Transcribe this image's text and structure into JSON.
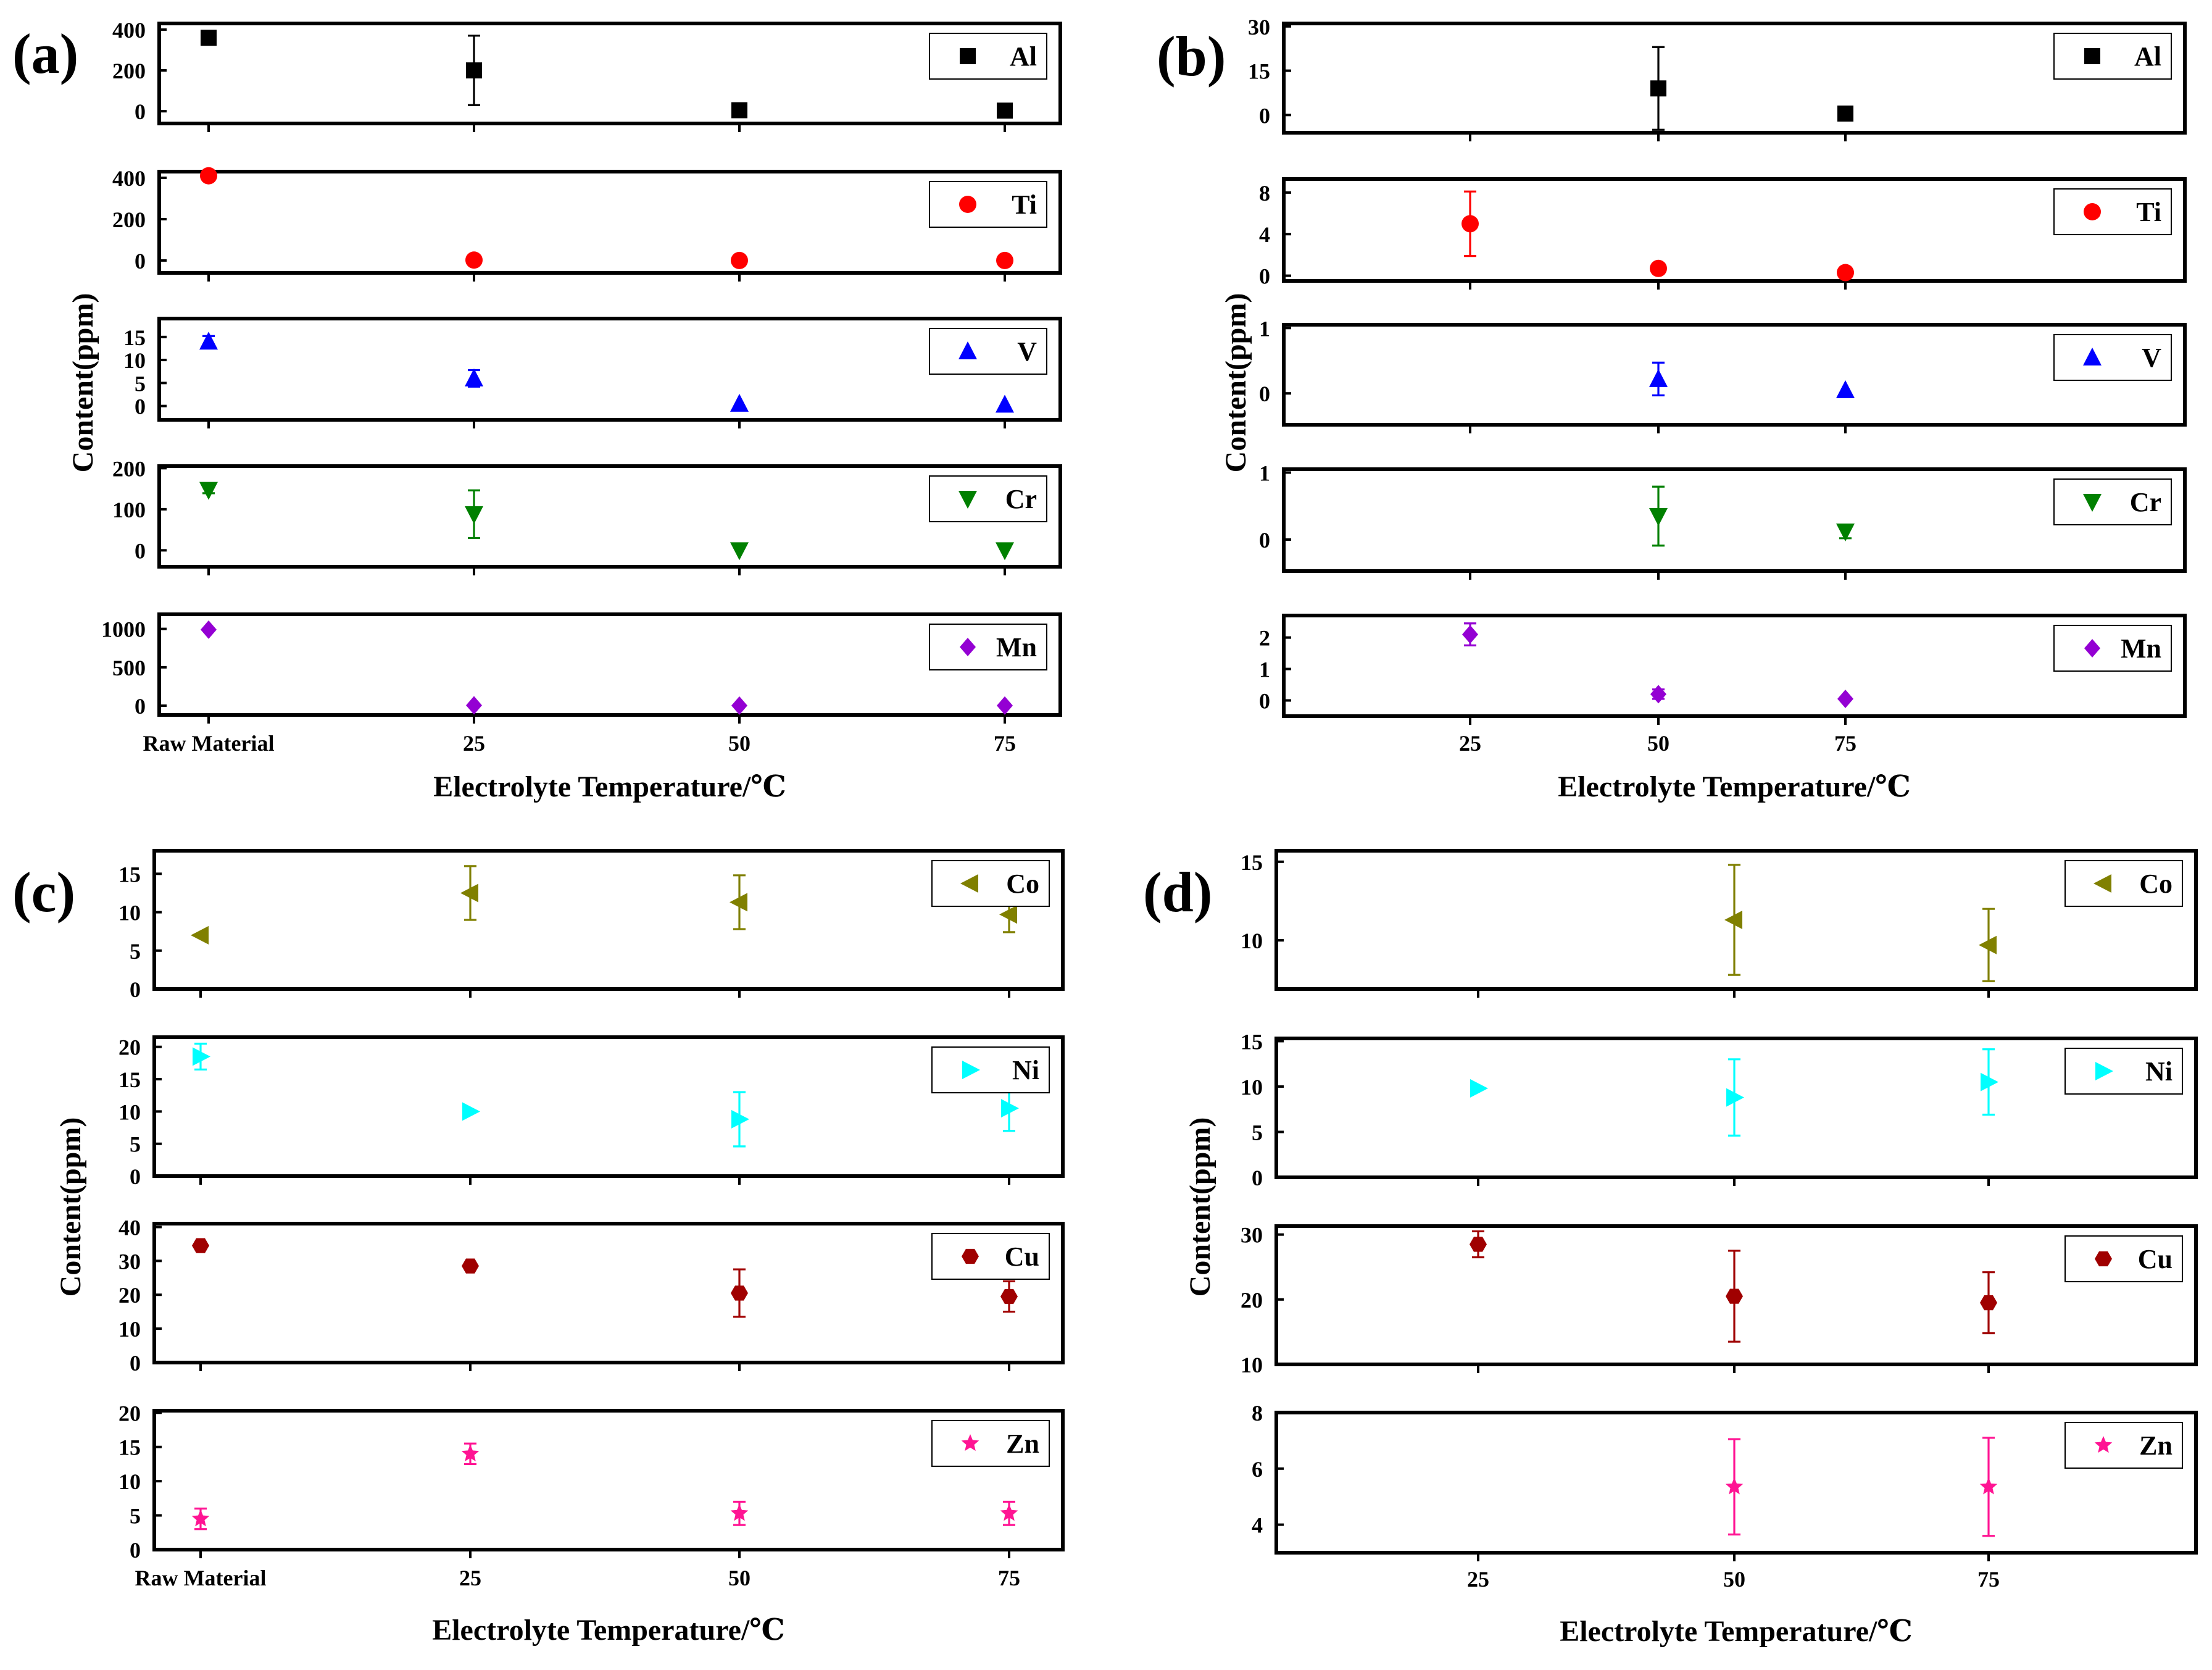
{
  "chart_data": [
    {
      "panel": "(a)",
      "type": "scatter",
      "xlabel": "Electrolyte Temperature/℃",
      "ylabel": "Content(ppm)",
      "categories": [
        "Raw Material",
        "25",
        "50",
        "75"
      ],
      "subplots": [
        {
          "name": "Al",
          "color": "#000000",
          "marker": "square",
          "yticks": [
            "400",
            "200",
            "0"
          ],
          "ylim": [
            -60,
            430
          ],
          "x": [
            0,
            1,
            2,
            3
          ],
          "y": [
            360,
            200,
            5,
            3
          ],
          "err": [
            0,
            170,
            0,
            0
          ]
        },
        {
          "name": "Ti",
          "color": "#ff0000",
          "marker": "circle",
          "yticks": [
            "400",
            "200",
            "0"
          ],
          "ylim": [
            -60,
            430
          ],
          "x": [
            0,
            1,
            2,
            3
          ],
          "y": [
            410,
            2,
            0,
            0
          ],
          "err": [
            0,
            0,
            0,
            0
          ]
        },
        {
          "name": "V",
          "color": "#0000ff",
          "marker": "triangle-up",
          "yticks": [
            "15",
            "10",
            "5",
            "0"
          ],
          "ylim": [
            -3,
            19
          ],
          "x": [
            0,
            1,
            2,
            3
          ],
          "y": [
            14,
            6,
            0.5,
            0.3
          ],
          "err": [
            1.2,
            1.8,
            0,
            0
          ]
        },
        {
          "name": "Cr",
          "color": "#008000",
          "marker": "triangle-down",
          "yticks": [
            "200",
            "100",
            "0"
          ],
          "ylim": [
            -40,
            205
          ],
          "x": [
            0,
            1,
            2,
            3
          ],
          "y": [
            147,
            88,
            0,
            0
          ],
          "err": [
            8,
            58,
            0,
            0
          ]
        },
        {
          "name": "Mn",
          "color": "#9400d3",
          "marker": "diamond",
          "yticks": [
            "1000",
            "500",
            "0"
          ],
          "ylim": [
            -120,
            1190
          ],
          "x": [
            0,
            1,
            2,
            3
          ],
          "y": [
            990,
            5,
            2,
            2
          ],
          "err": [
            0,
            0,
            0,
            0
          ]
        }
      ]
    },
    {
      "panel": "(b)",
      "type": "scatter",
      "xlabel": "Electrolyte Temperature/℃",
      "ylabel": "Content(ppm)",
      "categories": [
        "25",
        "50",
        "75"
      ],
      "subplots": [
        {
          "name": "Al",
          "color": "#000000",
          "marker": "square",
          "yticks": [
            "30",
            "15",
            "0"
          ],
          "ylim": [
            -6,
            31
          ],
          "x": [
            0,
            1,
            2
          ],
          "y": [
            null,
            9,
            0.5
          ],
          "err": [
            0,
            14,
            0
          ]
        },
        {
          "name": "Ti",
          "color": "#ff0000",
          "marker": "circle",
          "yticks": [
            "8",
            "4",
            "0"
          ],
          "ylim": [
            -0.5,
            9.3
          ],
          "x": [
            0,
            1,
            2
          ],
          "y": [
            5,
            0.7,
            0.3
          ],
          "err": [
            3.1,
            0,
            0
          ]
        },
        {
          "name": "V",
          "color": "#0000ff",
          "marker": "triangle-up",
          "yticks": [
            "1",
            "0"
          ],
          "ylim": [
            -0.48,
            1.05
          ],
          "x": [
            0,
            1,
            2
          ],
          "y": [
            null,
            0.22,
            0.05
          ],
          "err": [
            0,
            0.25,
            0
          ]
        },
        {
          "name": "Cr",
          "color": "#008000",
          "marker": "triangle-down",
          "yticks": [
            "1",
            "0"
          ],
          "ylim": [
            -0.47,
            1.05
          ],
          "x": [
            0,
            1,
            2
          ],
          "y": [
            null,
            0.35,
            0.12
          ],
          "err": [
            0,
            0.44,
            0.1
          ]
        },
        {
          "name": "Mn",
          "color": "#9400d3",
          "marker": "diamond",
          "yticks": [
            "2",
            "1",
            "0"
          ],
          "ylim": [
            -0.5,
            2.7
          ],
          "x": [
            0,
            1,
            2
          ],
          "y": [
            2.1,
            0.2,
            0.05
          ],
          "err": [
            0.35,
            0.15,
            0
          ]
        }
      ]
    },
    {
      "panel": "(c)",
      "type": "scatter",
      "xlabel": "Electrolyte Temperature/℃",
      "ylabel": "Content(ppm)",
      "categories": [
        "Raw Material",
        "25",
        "50",
        "75"
      ],
      "subplots": [
        {
          "name": "Co",
          "color": "#808000",
          "marker": "triangle-left",
          "yticks": [
            "15",
            "10",
            "5",
            "0"
          ],
          "ylim": [
            0,
            18
          ],
          "x": [
            0,
            1,
            2,
            3
          ],
          "y": [
            7,
            12.5,
            11.3,
            9.7
          ],
          "err": [
            0,
            3.5,
            3.5,
            2.3
          ]
        },
        {
          "name": "Ni",
          "color": "#00ffff",
          "marker": "triangle-right",
          "yticks": [
            "20",
            "15",
            "10",
            "5",
            "0"
          ],
          "ylim": [
            0,
            21.5
          ],
          "x": [
            0,
            1,
            2,
            3
          ],
          "y": [
            18.5,
            10,
            8.8,
            10.5
          ],
          "err": [
            2,
            0,
            4.2,
            3.5
          ]
        },
        {
          "name": "Cu",
          "color": "#a00000",
          "marker": "hexagon",
          "yticks": [
            "40",
            "30",
            "20",
            "10",
            "0"
          ],
          "ylim": [
            0,
            41
          ],
          "x": [
            0,
            1,
            2,
            3
          ],
          "y": [
            34.5,
            28.5,
            20.5,
            19.5
          ],
          "err": [
            1,
            1,
            7,
            4.5
          ]
        },
        {
          "name": "Zn",
          "color": "#ff1493",
          "marker": "star",
          "yticks": [
            "20",
            "15",
            "10",
            "5",
            "0"
          ],
          "ylim": [
            0,
            20.3
          ],
          "x": [
            0,
            1,
            2,
            3
          ],
          "y": [
            4.5,
            14,
            5.3,
            5.3
          ],
          "err": [
            1.5,
            1.5,
            1.7,
            1.7
          ]
        }
      ]
    },
    {
      "panel": "(d)",
      "type": "scatter",
      "xlabel": "Electrolyte Temperature/℃",
      "ylabel": "Content(ppm)",
      "categories": [
        "25",
        "50",
        "75"
      ],
      "subplots": [
        {
          "name": "Co",
          "color": "#808000",
          "marker": "triangle-left",
          "yticks": [
            "15",
            "10"
          ],
          "ylim": [
            6.9,
            15.7
          ],
          "x": [
            0,
            1,
            2
          ],
          "y": [
            null,
            11.3,
            9.7
          ],
          "err": [
            0,
            3.5,
            2.3
          ]
        },
        {
          "name": "Ni",
          "color": "#00ffff",
          "marker": "triangle-right",
          "yticks": [
            "15",
            "10",
            "5",
            "0"
          ],
          "ylim": [
            0,
            15.3
          ],
          "x": [
            0,
            1,
            2
          ],
          "y": [
            9.8,
            8.8,
            10.5
          ],
          "err": [
            0,
            4.2,
            3.6
          ]
        },
        {
          "name": "Cu",
          "color": "#a00000",
          "marker": "hexagon",
          "yticks": [
            "30",
            "20",
            "10"
          ],
          "ylim": [
            10,
            31.3
          ],
          "x": [
            0,
            1,
            2
          ],
          "y": [
            28.5,
            20.5,
            19.5
          ],
          "err": [
            2,
            7,
            4.7
          ]
        },
        {
          "name": "Zn",
          "color": "#ff1493",
          "marker": "star",
          "yticks": [
            "8",
            "6",
            "4"
          ],
          "ylim": [
            3,
            8
          ],
          "x": [
            0,
            1,
            2
          ],
          "y": [
            null,
            5.35,
            5.35
          ],
          "err": [
            0,
            1.7,
            1.75
          ]
        }
      ]
    }
  ]
}
